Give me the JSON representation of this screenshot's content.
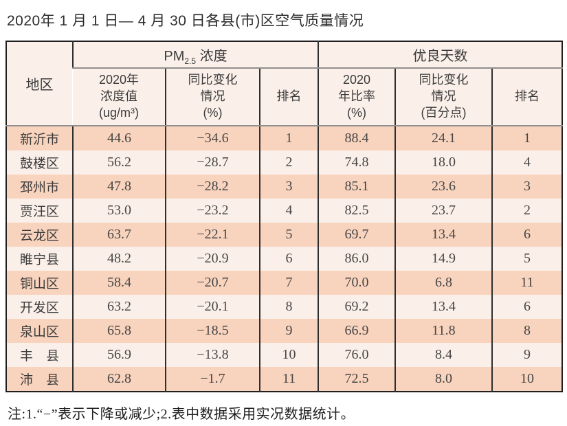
{
  "title": "2020年 1 月 1 日— 4 月 30 日各县(市)区空气质量情况",
  "table": {
    "header": {
      "region": "地区",
      "pm_group": {
        "prefix": "PM",
        "sub": "2.5",
        "suffix": " 浓度"
      },
      "days_group": "优良天数",
      "sub_headers": {
        "pm_value": "2020年\n浓度值\n(ug/m³)",
        "pm_change": "同比变化\n情况\n(%)",
        "pm_rank": "排名",
        "days_ratio": "2020\n年比率\n(%)",
        "days_change": "同比变化\n情况\n(百分点)",
        "days_rank": "排名"
      }
    },
    "rows": [
      {
        "region": "新沂市",
        "pm_value": "44.6",
        "pm_change": "−34.6",
        "pm_rank": "1",
        "days_ratio": "88.4",
        "days_change": "24.1",
        "days_rank": "1"
      },
      {
        "region": "鼓楼区",
        "pm_value": "56.2",
        "pm_change": "−28.7",
        "pm_rank": "2",
        "days_ratio": "74.8",
        "days_change": "18.0",
        "days_rank": "4"
      },
      {
        "region": "邳州市",
        "pm_value": "47.8",
        "pm_change": "−28.2",
        "pm_rank": "3",
        "days_ratio": "85.1",
        "days_change": "23.6",
        "days_rank": "3"
      },
      {
        "region": "贾汪区",
        "pm_value": "53.0",
        "pm_change": "−23.2",
        "pm_rank": "4",
        "days_ratio": "82.5",
        "days_change": "23.7",
        "days_rank": "2"
      },
      {
        "region": "云龙区",
        "pm_value": "63.7",
        "pm_change": "−22.1",
        "pm_rank": "5",
        "days_ratio": "69.7",
        "days_change": "13.4",
        "days_rank": "6"
      },
      {
        "region": "睢宁县",
        "pm_value": "48.2",
        "pm_change": "−20.9",
        "pm_rank": "6",
        "days_ratio": "86.0",
        "days_change": "14.9",
        "days_rank": "5"
      },
      {
        "region": "铜山区",
        "pm_value": "58.4",
        "pm_change": "−20.7",
        "pm_rank": "7",
        "days_ratio": "70.0",
        "days_change": "6.8",
        "days_rank": "11"
      },
      {
        "region": "开发区",
        "pm_value": "63.2",
        "pm_change": "−20.1",
        "pm_rank": "8",
        "days_ratio": "69.2",
        "days_change": "13.4",
        "days_rank": "6"
      },
      {
        "region": "泉山区",
        "pm_value": "65.8",
        "pm_change": "−18.5",
        "pm_rank": "9",
        "days_ratio": "66.9",
        "days_change": "11.8",
        "days_rank": "8"
      },
      {
        "region": "丰　县",
        "pm_value": "56.9",
        "pm_change": "−13.8",
        "pm_rank": "10",
        "days_ratio": "76.0",
        "days_change": "8.4",
        "days_rank": "9"
      },
      {
        "region": "沛　县",
        "pm_value": "62.8",
        "pm_change": "−1.7",
        "pm_rank": "11",
        "days_ratio": "72.5",
        "days_change": "8.0",
        "days_rank": "10"
      }
    ]
  },
  "note": "注:1.“−”表示下降或减少;2.表中数据采用实况数据统计。",
  "colors": {
    "row_salmon": "#f8d3bd",
    "row_cream": "#fbf0e9",
    "border_dark": "#2e2e2e",
    "border_gray": "#8f8f8f",
    "outer_border": "#1f1f1f"
  }
}
